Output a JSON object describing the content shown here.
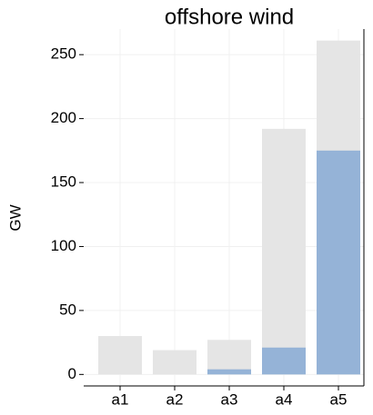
{
  "chart_data": {
    "type": "bar",
    "barmode": "overlay",
    "title": "offshore wind",
    "y_label": "GW",
    "categories": [
      "a1",
      "a2",
      "a3",
      "a4",
      "a5"
    ],
    "series": [
      {
        "color": "#e5e5e5",
        "values": [
          30,
          19,
          27,
          192,
          261
        ]
      },
      {
        "color": "#95b3d7",
        "values": [
          0,
          0,
          4,
          21,
          175
        ]
      }
    ],
    "ylim": [
      -9,
      270
    ],
    "yticks": [
      0,
      50,
      100,
      150,
      200,
      250
    ],
    "grid": true
  }
}
